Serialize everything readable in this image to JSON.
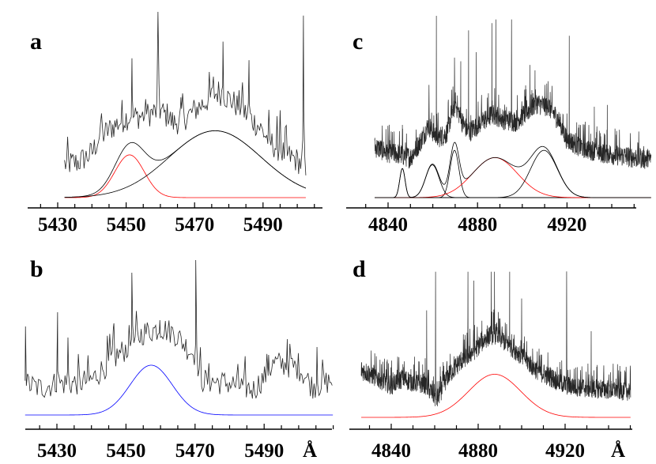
{
  "chart_data": [
    {
      "label": "a",
      "type": "line",
      "xlabel": "",
      "xlim": [
        5421,
        5507
      ],
      "ylim": [
        0,
        100
      ],
      "major_ticks": [
        5430,
        5450,
        5470,
        5490
      ],
      "tick_labels": [
        "5430",
        "5450",
        "5470",
        "5490"
      ],
      "minor_tick_step": 5,
      "minor_tick_range": [
        5425,
        5505
      ],
      "spectrum": {
        "range": [
          5432,
          5502.6
        ],
        "color": "#000000",
        "noise": 7,
        "continuum": [
          [
            5432,
            18
          ],
          [
            5436,
            19
          ],
          [
            5440,
            24
          ],
          [
            5442,
            32
          ],
          [
            5446,
            38
          ],
          [
            5450,
            43
          ],
          [
            5455,
            44
          ],
          [
            5460,
            47
          ],
          [
            5464,
            40
          ],
          [
            5468,
            44
          ],
          [
            5472,
            50
          ],
          [
            5477,
            57
          ],
          [
            5481,
            52
          ],
          [
            5485,
            45
          ],
          [
            5489,
            38
          ],
          [
            5492,
            30
          ],
          [
            5496,
            24
          ],
          [
            5500,
            20
          ],
          [
            5502.6,
            16
          ]
        ],
        "spikes": [
          [
            5442.5,
            40
          ],
          [
            5451.7,
            75
          ],
          [
            5459.3,
            100
          ],
          [
            5466,
            54
          ],
          [
            5475.5,
            65
          ],
          [
            5478.3,
            84
          ],
          [
            5484,
            62
          ],
          [
            5485.9,
            74
          ],
          [
            5495,
            47
          ],
          [
            5501.8,
            98
          ]
        ]
      },
      "components": [
        {
          "center": 5451,
          "sigma": 4.3,
          "amplitude": 23,
          "color": "#ff0000"
        },
        {
          "center": 5476,
          "sigma": 13.4,
          "amplitude": 36,
          "color": "#000000"
        }
      ],
      "sum_curve": true
    },
    {
      "label": "b",
      "type": "line",
      "xlabel": "Å",
      "xlim": [
        5421,
        5510
      ],
      "ylim": [
        0,
        100
      ],
      "major_ticks": [
        5430,
        5450,
        5470,
        5490
      ],
      "tick_labels": [
        "5430",
        "5450",
        "5470",
        "5490"
      ],
      "minor_tick_step": 5,
      "minor_tick_range": [
        5425,
        5510
      ],
      "spectrum": {
        "range": [
          5420.8,
          5510
        ],
        "color": "#000000",
        "noise": 8,
        "continuum": [
          [
            5420.8,
            20
          ],
          [
            5425,
            17
          ],
          [
            5430,
            20
          ],
          [
            5435,
            20
          ],
          [
            5440,
            22
          ],
          [
            5445,
            33
          ],
          [
            5450,
            42
          ],
          [
            5455,
            52
          ],
          [
            5460,
            55
          ],
          [
            5464,
            52
          ],
          [
            5468,
            42
          ],
          [
            5470,
            38
          ],
          [
            5472,
            22
          ],
          [
            5480,
            20
          ],
          [
            5487,
            16
          ],
          [
            5490,
            24
          ],
          [
            5493,
            33
          ],
          [
            5500,
            30
          ],
          [
            5504,
            18
          ],
          [
            5510,
            22
          ]
        ],
        "spikes": [
          [
            5420.9,
            56
          ],
          [
            5430.2,
            65
          ],
          [
            5433.2,
            49
          ],
          [
            5446.5,
            58
          ],
          [
            5451.7,
            90
          ],
          [
            5459.8,
            60
          ],
          [
            5470.2,
            98
          ],
          [
            5491.3,
            38
          ],
          [
            5496.7,
            48
          ],
          [
            5505.3,
            43
          ]
        ]
      },
      "components": [
        {
          "center": 5457.3,
          "sigma": 6.1,
          "amplitude": 31.5,
          "color": "#0000ff"
        }
      ],
      "sum_curve": false
    },
    {
      "label": "c",
      "type": "line",
      "xlabel": "",
      "xlim": [
        4822,
        4952
      ],
      "ylim": [
        0,
        100
      ],
      "major_ticks": [
        4840,
        4880,
        4920
      ],
      "tick_labels": [
        "4840",
        "4880",
        "4920"
      ],
      "minor_tick_step": 10,
      "minor_tick_range": [
        4830,
        4960
      ],
      "spectrum": {
        "range": [
          4834,
          4957.6
        ],
        "color": "#000000",
        "noise": 6,
        "continuum": [
          [
            4834,
            28
          ],
          [
            4840,
            25
          ],
          [
            4845,
            24
          ],
          [
            4850,
            22
          ],
          [
            4855,
            32
          ],
          [
            4858,
            40
          ],
          [
            4862,
            33
          ],
          [
            4866,
            35
          ],
          [
            4870,
            52
          ],
          [
            4873,
            42
          ],
          [
            4876,
            36
          ],
          [
            4882,
            42
          ],
          [
            4887,
            46
          ],
          [
            4892,
            43
          ],
          [
            4897,
            42
          ],
          [
            4902,
            47
          ],
          [
            4906,
            52
          ],
          [
            4912,
            50
          ],
          [
            4916,
            43
          ],
          [
            4920,
            32
          ],
          [
            4926,
            28
          ],
          [
            4935,
            25
          ],
          [
            4945,
            23
          ],
          [
            4957.6,
            21
          ]
        ],
        "spikes": [
          [
            4846.4,
            40
          ],
          [
            4858.3,
            62
          ],
          [
            4861.6,
            100
          ],
          [
            4869.7,
            77
          ],
          [
            4872.5,
            75
          ],
          [
            4876,
            92
          ],
          [
            4879.4,
            80
          ],
          [
            4886.4,
            96
          ],
          [
            4888.2,
            98
          ],
          [
            4895.2,
            98
          ],
          [
            4903.4,
            73
          ],
          [
            4905.7,
            70
          ],
          [
            4911.5,
            64
          ],
          [
            4921,
            89
          ],
          [
            4932.2,
            50
          ],
          [
            4938,
            51
          ]
        ]
      },
      "components": [
        {
          "center": 4846.4,
          "sigma": 1.2,
          "amplitude": 16,
          "color": "#000000"
        },
        {
          "center": 4859.8,
          "sigma": 3.0,
          "amplitude": 18,
          "color": "#000000"
        },
        {
          "center": 4869.7,
          "sigma": 2.0,
          "amplitude": 26,
          "color": "#000000"
        },
        {
          "center": 4887.8,
          "sigma": 10.0,
          "amplitude": 22,
          "color": "#ff0000"
        },
        {
          "center": 4909.7,
          "sigma": 6.0,
          "amplitude": 26,
          "color": "#000000"
        }
      ],
      "sum_curve": true
    },
    {
      "label": "d",
      "type": "line",
      "xlabel": "Å",
      "xlim": [
        4822,
        4950
      ],
      "ylim": [
        0,
        100
      ],
      "major_ticks": [
        4840,
        4880,
        4920
      ],
      "tick_labels": [
        "4840",
        "4880",
        "4920"
      ],
      "minor_tick_step": 10,
      "minor_tick_range": [
        4830,
        4950
      ],
      "spectrum": {
        "range": [
          4826.2,
          4950.2
        ],
        "color": "#000000",
        "noise": 7,
        "continuum": [
          [
            4826.2,
            32
          ],
          [
            4832,
            28
          ],
          [
            4840,
            22
          ],
          [
            4845,
            26
          ],
          [
            4850,
            24
          ],
          [
            4856,
            22
          ],
          [
            4861,
            12
          ],
          [
            4866,
            28
          ],
          [
            4872,
            38
          ],
          [
            4878,
            45
          ],
          [
            4884,
            54
          ],
          [
            4888,
            56
          ],
          [
            4894,
            49
          ],
          [
            4900,
            42
          ],
          [
            4906,
            33
          ],
          [
            4912,
            28
          ],
          [
            4920,
            22
          ],
          [
            4930,
            20
          ],
          [
            4940,
            19
          ],
          [
            4950.2,
            18
          ]
        ],
        "spikes": [
          [
            4856.3,
            72
          ],
          [
            4860.4,
            98
          ],
          [
            4875.3,
            98
          ],
          [
            4878,
            92
          ],
          [
            4886,
            98
          ],
          [
            4887.5,
            98
          ],
          [
            4894.5,
            98
          ],
          [
            4900,
            80
          ],
          [
            4920.7,
            98
          ],
          [
            4932,
            58
          ]
        ]
      },
      "components": [
        {
          "center": 4887.6,
          "sigma": 12,
          "amplitude": 29,
          "color": "#ff0000"
        }
      ],
      "sum_curve": false
    }
  ]
}
